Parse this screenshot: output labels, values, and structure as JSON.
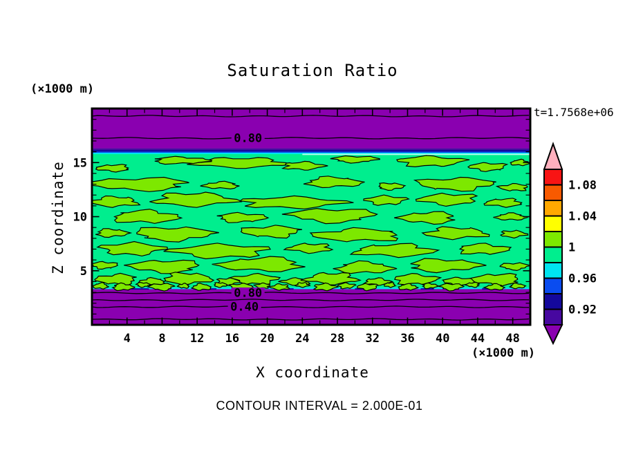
{
  "title": "Saturation Ratio",
  "time_label": "t=1.7568e+06",
  "footer_note": "CONTOUR INTERVAL = 2.000E-01",
  "x_axis": {
    "label": "X coordinate",
    "unit_label": "(×1000 m)",
    "range": [
      0,
      50
    ],
    "major_ticks": [
      4,
      8,
      12,
      16,
      20,
      24,
      28,
      32,
      36,
      40,
      44,
      48
    ],
    "minor_step": 2
  },
  "z_axis": {
    "label": "Z coordinate",
    "unit_label": "(×1000 m)",
    "range": [
      0,
      20
    ],
    "major_ticks": [
      5,
      10,
      15
    ],
    "minor_step": 1
  },
  "colorbar": {
    "labels": [
      {
        "text": "1.08",
        "boundary": 1
      },
      {
        "text": "1.04",
        "boundary": 3
      },
      {
        "text": "1",
        "boundary": 5
      },
      {
        "text": "0.96",
        "boundary": 7
      },
      {
        "text": "0.92",
        "boundary": 9
      }
    ],
    "segment_colors": [
      "#F81414",
      "#F85A00",
      "#FFA800",
      "#FFFF00",
      "#7DE800",
      "#00EE8E",
      "#00E4F0",
      "#0A4CF0",
      "#14089C",
      "#4708A0"
    ],
    "arrow_top_color": "#FFB0BE",
    "arrow_bottom_color": "#8A00B0",
    "outline_color": "#000000"
  },
  "chart_data": {
    "type": "contour",
    "title": "Saturation Ratio",
    "x_range": [
      0,
      50
    ],
    "z_range": [
      0,
      20
    ],
    "contour_interval": 0.2,
    "segment_boundaries_top_to_bottom": [
      1.1,
      1.08,
      1.06,
      1.04,
      1.02,
      1.0,
      0.98,
      0.96,
      0.94,
      0.92,
      0.9
    ],
    "interior_value_band": [
      0.98,
      1.0
    ],
    "patch_value_band": [
      1.0,
      1.02
    ],
    "dry_band_value": "< 0.90",
    "colors": {
      "background_green": "#00EE8E",
      "patch_green": "#7DE800",
      "band_purple": "#8A00B0",
      "stripe_indigo": "#4708A0",
      "stripe_navy": "#14089C",
      "stripe_blue": "#0A4CF0",
      "stripe_cyan": "#00E4F0",
      "stripe_pale": "#B6FFE9",
      "line_black": "#000000"
    },
    "bands": {
      "top": {
        "purple_z": [
          16.3,
          20.0
        ],
        "indigo_z": [
          16.17,
          16.3
        ],
        "navy_z": [
          16.01,
          16.17
        ],
        "blue_z": [
          15.91,
          16.01
        ],
        "cyan_z": [
          15.78,
          15.91
        ],
        "pale_z": [
          15.7,
          15.82
        ],
        "pale_x_from": 24
      },
      "bottom": {
        "cyan_z": [
          3.3,
          3.44
        ],
        "purple_z": [
          0.0,
          3.3
        ],
        "navy_dash_x": [
          [
            4.5,
            6.5
          ],
          [
            13.0,
            14.2
          ],
          [
            21.5,
            23.0
          ],
          [
            30.0,
            31.5
          ],
          [
            37.5,
            39.0
          ],
          [
            44.5,
            45.8
          ]
        ],
        "navy_dash_z": [
          3.26,
          3.38
        ]
      }
    },
    "contours": [
      {
        "label": "",
        "z": 19.3
      },
      {
        "label": "0.80",
        "z": 17.26,
        "label_x": 17.8
      },
      {
        "label": "0.80",
        "z": 2.94,
        "label_x": 17.8
      },
      {
        "label": "",
        "z": 2.3
      },
      {
        "label": "0.40",
        "z": 1.66,
        "label_x": 17.4
      },
      {
        "label": "",
        "z": 0.51
      }
    ],
    "patches": [
      [
        17.0,
        15.0,
        5.0,
        0.45
      ],
      [
        24.0,
        14.7,
        2.2,
        0.35
      ],
      [
        38.5,
        15.1,
        3.6,
        0.45
      ],
      [
        45.2,
        14.6,
        2.0,
        0.35
      ],
      [
        2.5,
        14.5,
        1.8,
        0.3
      ],
      [
        48.8,
        15.0,
        1.0,
        0.25
      ],
      [
        10.0,
        15.2,
        3.0,
        0.3
      ],
      [
        30.0,
        15.3,
        2.4,
        0.28
      ],
      [
        5.5,
        13.0,
        5.4,
        0.55
      ],
      [
        14.8,
        12.9,
        1.9,
        0.3
      ],
      [
        27.5,
        13.2,
        3.0,
        0.45
      ],
      [
        34.0,
        12.8,
        1.4,
        0.3
      ],
      [
        41.5,
        13.0,
        4.2,
        0.55
      ],
      [
        48.2,
        12.7,
        1.6,
        0.3
      ],
      [
        2.6,
        11.4,
        2.6,
        0.45
      ],
      [
        11.5,
        11.6,
        4.4,
        0.6
      ],
      [
        22.5,
        11.3,
        5.6,
        0.5
      ],
      [
        33.5,
        11.5,
        2.2,
        0.4
      ],
      [
        40.8,
        11.6,
        3.2,
        0.5
      ],
      [
        47.0,
        11.3,
        2.0,
        0.35
      ],
      [
        6.0,
        10.0,
        3.6,
        0.55
      ],
      [
        17.0,
        9.9,
        2.6,
        0.4
      ],
      [
        27.5,
        10.1,
        4.6,
        0.6
      ],
      [
        38.5,
        9.9,
        3.0,
        0.5
      ],
      [
        47.8,
        10.0,
        1.6,
        0.3
      ],
      [
        2.2,
        8.5,
        1.7,
        0.35
      ],
      [
        9.2,
        8.4,
        4.2,
        0.6
      ],
      [
        20.5,
        8.6,
        3.2,
        0.5
      ],
      [
        30.5,
        8.3,
        4.8,
        0.55
      ],
      [
        41.5,
        8.5,
        3.4,
        0.5
      ],
      [
        48.0,
        8.4,
        1.4,
        0.3
      ],
      [
        4.5,
        7.0,
        3.4,
        0.55
      ],
      [
        14.8,
        6.8,
        5.2,
        0.6
      ],
      [
        25.0,
        7.1,
        2.4,
        0.4
      ],
      [
        34.5,
        6.9,
        4.4,
        0.55
      ],
      [
        44.5,
        7.0,
        2.8,
        0.45
      ],
      [
        1.4,
        5.5,
        1.4,
        0.3
      ],
      [
        8.5,
        5.4,
        3.8,
        0.55
      ],
      [
        19.5,
        5.6,
        4.5,
        0.6
      ],
      [
        31.0,
        5.3,
        3.0,
        0.5
      ],
      [
        40.0,
        5.5,
        3.8,
        0.55
      ],
      [
        48.2,
        5.4,
        1.5,
        0.3
      ],
      [
        2.9,
        4.2,
        2.2,
        0.45
      ],
      [
        6.9,
        4.0,
        1.4,
        0.3
      ],
      [
        10.8,
        4.3,
        2.6,
        0.5
      ],
      [
        15.5,
        4.0,
        1.2,
        0.3
      ],
      [
        18.7,
        4.2,
        2.4,
        0.45
      ],
      [
        23.4,
        4.0,
        1.6,
        0.3
      ],
      [
        27.4,
        4.3,
        2.8,
        0.5
      ],
      [
        32.5,
        4.0,
        1.4,
        0.3
      ],
      [
        36.8,
        4.2,
        2.4,
        0.45
      ],
      [
        42.0,
        4.0,
        1.8,
        0.35
      ],
      [
        46.3,
        4.2,
        2.6,
        0.5
      ],
      [
        1.0,
        3.6,
        0.8,
        0.25
      ],
      [
        3.5,
        3.5,
        1.1,
        0.3
      ],
      [
        5.8,
        3.7,
        0.7,
        0.2
      ],
      [
        8.0,
        3.5,
        1.3,
        0.3
      ],
      [
        10.5,
        3.6,
        0.6,
        0.2
      ],
      [
        12.5,
        3.5,
        1.0,
        0.28
      ],
      [
        14.6,
        3.7,
        0.7,
        0.2
      ],
      [
        17.0,
        3.5,
        1.2,
        0.3
      ],
      [
        19.5,
        3.6,
        0.8,
        0.22
      ],
      [
        21.5,
        3.5,
        1.0,
        0.26
      ],
      [
        24.0,
        3.7,
        0.7,
        0.2
      ],
      [
        26.5,
        3.5,
        1.2,
        0.3
      ],
      [
        29.0,
        3.6,
        0.9,
        0.24
      ],
      [
        31.5,
        3.5,
        1.1,
        0.28
      ],
      [
        34.0,
        3.7,
        0.6,
        0.2
      ],
      [
        36.0,
        3.5,
        1.0,
        0.26
      ],
      [
        38.5,
        3.6,
        0.8,
        0.22
      ],
      [
        41.0,
        3.5,
        1.2,
        0.3
      ],
      [
        43.5,
        3.7,
        0.7,
        0.2
      ],
      [
        46.0,
        3.5,
        1.0,
        0.26
      ],
      [
        48.5,
        3.6,
        0.8,
        0.22
      ]
    ]
  }
}
